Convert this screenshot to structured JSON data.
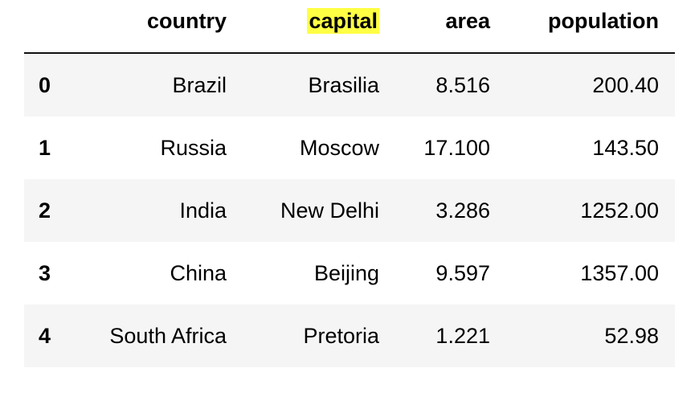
{
  "table": {
    "headers": {
      "index": "",
      "country": "country",
      "capital": "capital",
      "area": "area",
      "population": "population"
    },
    "highlighted_header": "capital",
    "highlight_color": "#ffff44",
    "stripe_color": "#f5f5f5",
    "rows": [
      {
        "index": "0",
        "country": "Brazil",
        "capital": "Brasilia",
        "area": "8.516",
        "population": "200.40"
      },
      {
        "index": "1",
        "country": "Russia",
        "capital": "Moscow",
        "area": "17.100",
        "population": "143.50"
      },
      {
        "index": "2",
        "country": "India",
        "capital": "New Delhi",
        "area": "3.286",
        "population": "1252.00"
      },
      {
        "index": "3",
        "country": "China",
        "capital": "Beijing",
        "area": "9.597",
        "population": "1357.00"
      },
      {
        "index": "4",
        "country": "South Africa",
        "capital": "Pretoria",
        "area": "1.221",
        "population": "52.98"
      }
    ]
  }
}
